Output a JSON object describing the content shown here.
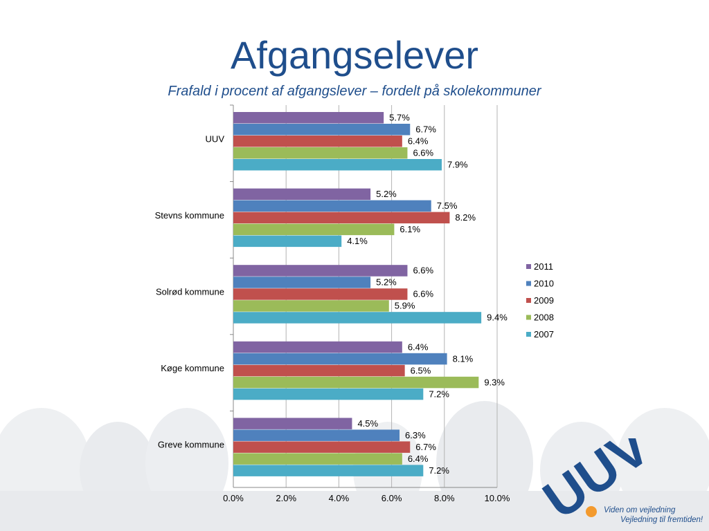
{
  "header": {
    "title": "Afgangselever",
    "subtitle": "Frafald i procent af afgangslever – fordelt på skolekommuner"
  },
  "logo": {
    "text": "UUV",
    "tagline1": "Viden om vejledning",
    "tagline2": "Vejledning til fremtiden!"
  },
  "chart_data": {
    "type": "bar",
    "orientation": "horizontal",
    "categories": [
      "UUV",
      "Stevns kommune",
      "Solrød kommune",
      "Køge kommune",
      "Greve kommune"
    ],
    "series": [
      {
        "name": "2011",
        "color": "#8064a2",
        "values": [
          5.7,
          5.2,
          6.6,
          6.4,
          4.5
        ]
      },
      {
        "name": "2010",
        "color": "#4f81bd",
        "values": [
          6.7,
          7.5,
          5.2,
          8.1,
          6.3
        ]
      },
      {
        "name": "2009",
        "color": "#c0504d",
        "values": [
          6.4,
          8.2,
          6.6,
          6.5,
          6.7
        ]
      },
      {
        "name": "2008",
        "color": "#9bbb59",
        "values": [
          6.6,
          6.1,
          5.9,
          9.3,
          6.4
        ]
      },
      {
        "name": "2007",
        "color": "#4bacc6",
        "values": [
          7.9,
          4.1,
          9.4,
          7.2,
          7.2
        ]
      }
    ],
    "xlim": [
      0,
      10
    ],
    "xticks": [
      "0.0%",
      "2.0%",
      "4.0%",
      "6.0%",
      "8.0%",
      "10.0%"
    ],
    "value_format": "percent_1dp",
    "grid": true,
    "legend": "right"
  }
}
